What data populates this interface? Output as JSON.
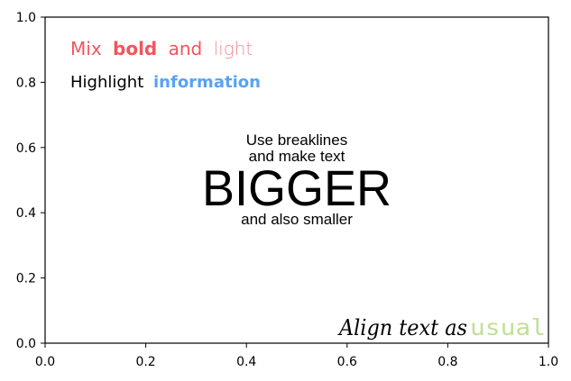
{
  "chart_data": {
    "type": "text",
    "xlim": [
      0,
      1
    ],
    "ylim": [
      0,
      1
    ],
    "x_ticks": [
      "0.0",
      "0.2",
      "0.4",
      "0.6",
      "0.8",
      "1.0"
    ],
    "y_ticks": [
      "0.0",
      "0.2",
      "0.4",
      "0.6",
      "0.8",
      "1.0"
    ],
    "grid": false,
    "annotations": {
      "line1": {
        "mix": "Mix",
        "bold": "bold",
        "and": "and",
        "light": "light"
      },
      "line2": {
        "highlight": "Highlight",
        "information": "information"
      },
      "center": {
        "line_a": "Use breaklines",
        "line_b": "and make text",
        "big": "BIGGER",
        "small": "and also smaller"
      },
      "bottom": {
        "align": "Align text as",
        "usual": "usual"
      }
    },
    "colors": {
      "red": "#f2555c",
      "red_light": "#f08e93",
      "blue": "#5aa2f4",
      "green": "#c2de98"
    }
  }
}
